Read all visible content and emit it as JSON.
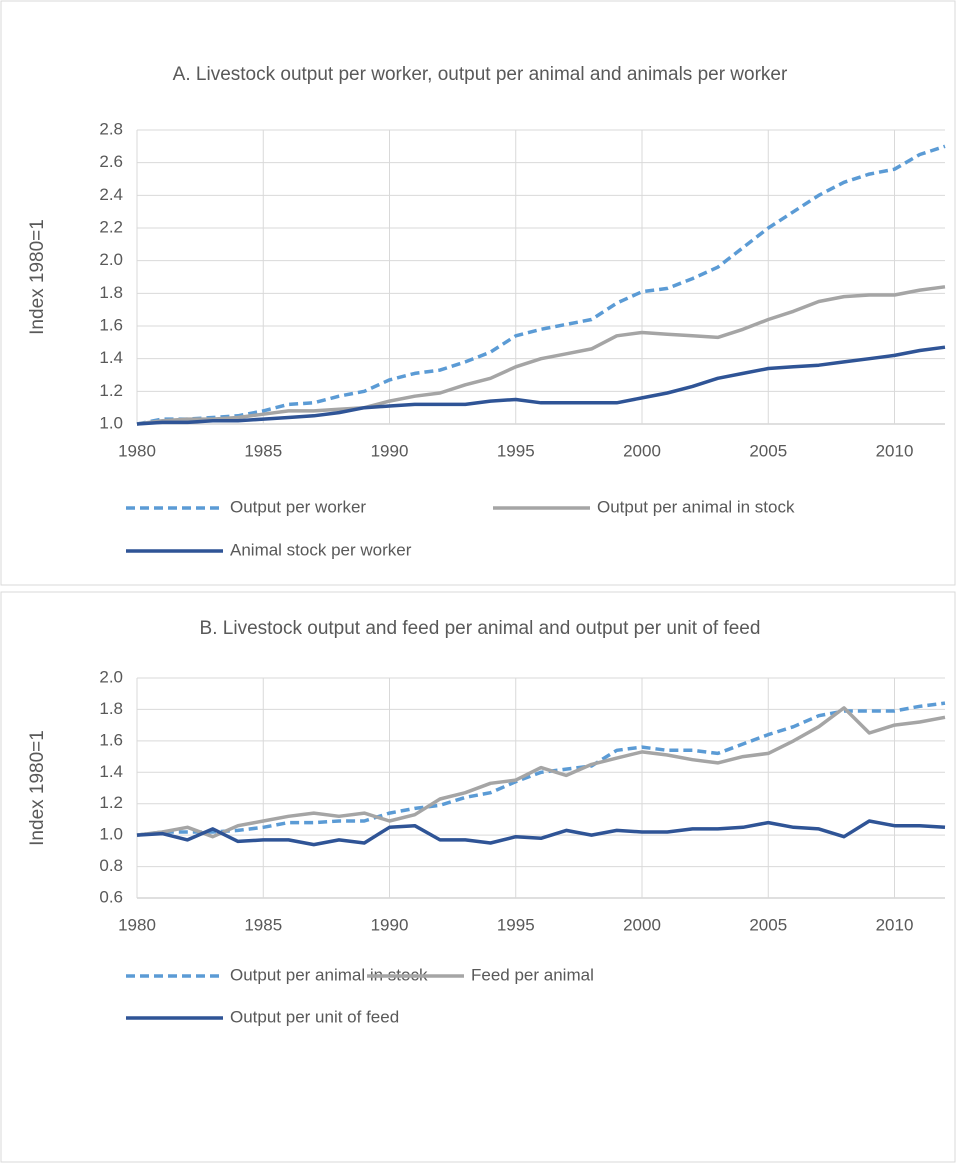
{
  "chart_data": [
    {
      "type": "line",
      "title": "A. Livestock output per worker, output per animal and animals per worker",
      "y_label": "Index 1980=1",
      "x": [
        1980,
        1981,
        1982,
        1983,
        1984,
        1985,
        1986,
        1987,
        1988,
        1989,
        1990,
        1991,
        1992,
        1993,
        1994,
        1995,
        1996,
        1997,
        1998,
        1999,
        2000,
        2001,
        2002,
        2003,
        2004,
        2005,
        2006,
        2007,
        2008,
        2009,
        2010,
        2011,
        2012
      ],
      "xlim": [
        1980,
        2012
      ],
      "xticks": [
        1980,
        1985,
        1990,
        1995,
        2000,
        2005,
        2010
      ],
      "ylim": [
        1.0,
        2.8
      ],
      "yticks": [
        {
          "value": 1.0,
          "label": "1.0"
        },
        {
          "value": 1.2,
          "label": "1.2"
        },
        {
          "value": 1.4,
          "label": "1.4"
        },
        {
          "value": 1.6,
          "label": "1.6"
        },
        {
          "value": 1.8,
          "label": "1.8"
        },
        {
          "value": 2.0,
          "label": "2.0"
        },
        {
          "value": 2.2,
          "label": "2.2"
        },
        {
          "value": 2.4,
          "label": "2.4"
        },
        {
          "value": 2.6,
          "label": "2.6"
        },
        {
          "value": 2.8,
          "label": "2.8"
        }
      ],
      "grid": true,
      "series": [
        {
          "name": "Output per worker",
          "color": "#5b9bd5",
          "style": "dashed",
          "values": [
            1.0,
            1.03,
            1.03,
            1.04,
            1.05,
            1.08,
            1.12,
            1.13,
            1.17,
            1.2,
            1.27,
            1.31,
            1.33,
            1.38,
            1.44,
            1.54,
            1.58,
            1.61,
            1.64,
            1.74,
            1.81,
            1.83,
            1.89,
            1.96,
            2.08,
            2.2,
            2.3,
            2.4,
            2.48,
            2.53,
            2.56,
            2.65,
            2.7
          ]
        },
        {
          "name": "Output per animal in stock",
          "color": "#a5a5a5",
          "style": "solid",
          "values": [
            1.0,
            1.02,
            1.03,
            1.03,
            1.04,
            1.06,
            1.08,
            1.08,
            1.09,
            1.1,
            1.14,
            1.17,
            1.19,
            1.24,
            1.28,
            1.35,
            1.4,
            1.43,
            1.46,
            1.54,
            1.56,
            1.55,
            1.54,
            1.53,
            1.58,
            1.64,
            1.69,
            1.75,
            1.78,
            1.79,
            1.79,
            1.82,
            1.84
          ]
        },
        {
          "name": "Animal stock per worker",
          "color": "#2f5496",
          "style": "solid",
          "values": [
            1.0,
            1.01,
            1.01,
            1.02,
            1.02,
            1.03,
            1.04,
            1.05,
            1.07,
            1.1,
            1.11,
            1.12,
            1.12,
            1.12,
            1.14,
            1.15,
            1.13,
            1.13,
            1.13,
            1.13,
            1.16,
            1.19,
            1.23,
            1.28,
            1.31,
            1.34,
            1.35,
            1.36,
            1.38,
            1.4,
            1.42,
            1.45,
            1.47
          ]
        }
      ]
    },
    {
      "type": "line",
      "title": "B. Livestock output and feed per animal and output per unit of feed",
      "y_label": "Index 1980=1",
      "x": [
        1980,
        1981,
        1982,
        1983,
        1984,
        1985,
        1986,
        1987,
        1988,
        1989,
        1990,
        1991,
        1992,
        1993,
        1994,
        1995,
        1996,
        1997,
        1998,
        1999,
        2000,
        2001,
        2002,
        2003,
        2004,
        2005,
        2006,
        2007,
        2008,
        2009,
        2010,
        2011,
        2012
      ],
      "xlim": [
        1980,
        2012
      ],
      "xticks": [
        1980,
        1985,
        1990,
        1995,
        2000,
        2005,
        2010
      ],
      "ylim": [
        0.6,
        2.0
      ],
      "yticks": [
        {
          "value": 0.6,
          "label": "0.6"
        },
        {
          "value": 0.8,
          "label": "0.8"
        },
        {
          "value": 1.0,
          "label": "1.0"
        },
        {
          "value": 1.2,
          "label": "1.2"
        },
        {
          "value": 1.4,
          "label": "1.4"
        },
        {
          "value": 1.6,
          "label": "1.6"
        },
        {
          "value": 1.8,
          "label": "1.8"
        },
        {
          "value": 2.0,
          "label": "2.0"
        }
      ],
      "grid": true,
      "series": [
        {
          "name": "Output per animal in stock",
          "color": "#5b9bd5",
          "style": "dashed",
          "values": [
            1.0,
            1.02,
            1.02,
            1.02,
            1.03,
            1.05,
            1.08,
            1.08,
            1.09,
            1.09,
            1.14,
            1.17,
            1.19,
            1.24,
            1.27,
            1.34,
            1.4,
            1.42,
            1.44,
            1.54,
            1.56,
            1.54,
            1.54,
            1.52,
            1.58,
            1.64,
            1.69,
            1.76,
            1.79,
            1.79,
            1.79,
            1.82,
            1.84
          ]
        },
        {
          "name": "Feed per animal",
          "color": "#a5a5a5",
          "style": "solid",
          "values": [
            1.0,
            1.02,
            1.05,
            0.99,
            1.06,
            1.09,
            1.12,
            1.14,
            1.12,
            1.14,
            1.09,
            1.13,
            1.23,
            1.27,
            1.33,
            1.35,
            1.43,
            1.38,
            1.45,
            1.49,
            1.53,
            1.51,
            1.48,
            1.46,
            1.5,
            1.52,
            1.6,
            1.69,
            1.81,
            1.65,
            1.7,
            1.72,
            1.75
          ]
        },
        {
          "name": "Output per unit of feed",
          "color": "#2f5496",
          "style": "solid",
          "values": [
            1.0,
            1.01,
            0.97,
            1.04,
            0.96,
            0.97,
            0.97,
            0.94,
            0.97,
            0.95,
            1.05,
            1.06,
            0.97,
            0.97,
            0.95,
            0.99,
            0.98,
            1.03,
            1.0,
            1.03,
            1.02,
            1.02,
            1.04,
            1.04,
            1.05,
            1.08,
            1.05,
            1.04,
            0.99,
            1.09,
            1.06,
            1.06,
            1.05
          ]
        }
      ]
    }
  ]
}
